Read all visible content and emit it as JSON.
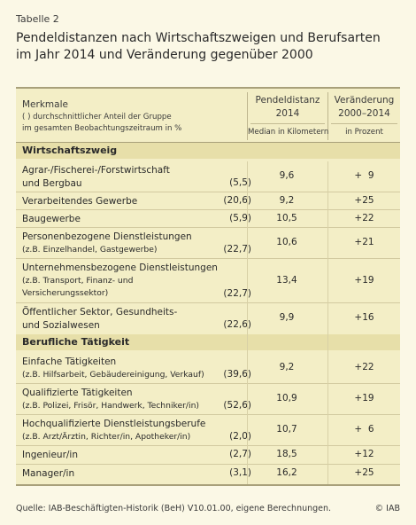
{
  "table_label": "Tabelle 2",
  "title_line1": "Pendeldistanzen nach Wirtschaftszweigen und Berufsarten",
  "title_line2": "im Jahr 2014 und Veränderung gegenüber 2000",
  "header": {
    "merkmale": "Merkmale",
    "note1": "( ) durchschnittlicher Anteil der Gruppe",
    "note2": "im gesamten Beobachtungszeitraum in %",
    "col2_line1": "Pendeldistanz",
    "col2_line2": "2014",
    "col2_unit": "Median in Kilometern",
    "col3_line1": "Veränderung",
    "col3_line2": "2000–2014",
    "col3_unit": "in Prozent"
  },
  "sections": [
    {
      "label": "Wirtschaftszweig",
      "rows": [
        {
          "line1": "Agrar-/Fischerei-/Forstwirtschaft",
          "line2": "und Bergbau",
          "share": "(5,5)",
          "distance": "9,6",
          "change": "+  9"
        },
        {
          "line1": "Verarbeitendes Gewerbe",
          "line2": "",
          "share": "(20,6)",
          "distance": "9,2",
          "change": "+25"
        },
        {
          "line1": "Baugewerbe",
          "line2": "",
          "share": "(5,9)",
          "distance": "10,5",
          "change": "+22"
        },
        {
          "line1": "Personenbezogene Dienstleistungen",
          "line2": "(z.B. Einzelhandel, Gastgewerbe)",
          "share": "(22,7)",
          "distance": "10,6",
          "change": "+21"
        },
        {
          "line1": "Unternehmensbezogene Dienstleistungen",
          "line2": "(z.B. Transport, Finanz- und",
          "line3": "Versicherungssektor)",
          "share": "(22,7)",
          "distance": "13,4",
          "change": "+19"
        },
        {
          "line1": "Öffentlicher Sektor, Gesundheits-",
          "line2": "und Sozialwesen",
          "share": "(22,6)",
          "distance": "9,9",
          "change": "+16"
        }
      ]
    },
    {
      "label": "Berufliche Tätigkeit",
      "rows": [
        {
          "line1": "Einfache Tätigkeiten",
          "line2": "(z.B. Hilfsarbeit, Gebäudereinigung, Verkauf)",
          "share": "(39,6)",
          "distance": "9,2",
          "change": "+22"
        },
        {
          "line1": "Qualifizierte Tätigkeiten",
          "line2": "(z.B. Polizei, Frisör, Handwerk, Techniker/in)",
          "share": "(52,6)",
          "distance": "10,9",
          "change": "+19"
        },
        {
          "line1": "Hochqualifizierte Dienstleistungsberufe",
          "line2": "(z.B. Arzt/Ärztin, Richter/in, Apotheker/in)",
          "share": "(2,0)",
          "distance": "10,7",
          "change": "+  6"
        },
        {
          "line1": "Ingenieur/in",
          "line2": "",
          "share": "(2,7)",
          "distance": "18,5",
          "change": "+12"
        },
        {
          "line1": "Manager/in",
          "line2": "",
          "share": "(3,1)",
          "distance": "16,2",
          "change": "+25"
        }
      ]
    }
  ],
  "source": "Quelle: IAB-Beschäftigten-Historik (BeH) V10.01.00, eigene Berechnungen.",
  "copyright": "© IAB"
}
